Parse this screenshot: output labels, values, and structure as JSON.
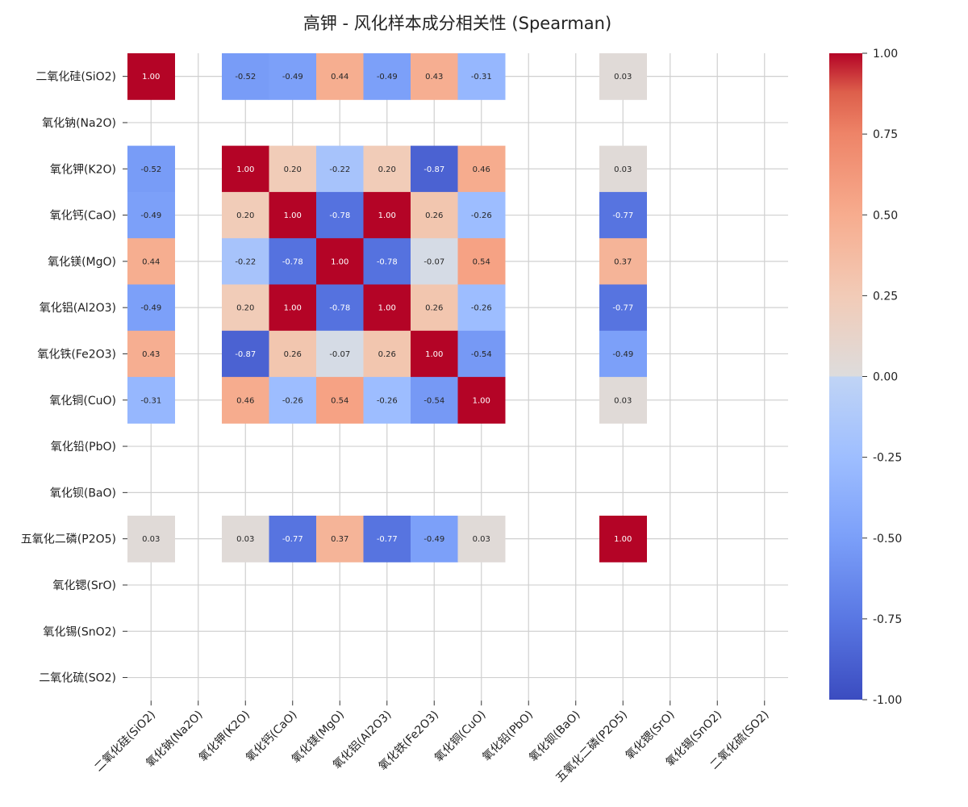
{
  "chart_data": {
    "type": "heatmap",
    "title": "高钾 - 风化样本成分相关性 (Spearman)",
    "row_labels": [
      "二氧化硅(SiO2)",
      "氧化钠(Na2O)",
      "氧化钾(K2O)",
      "氧化钙(CaO)",
      "氧化镁(MgO)",
      "氧化铝(Al2O3)",
      "氧化铁(Fe2O3)",
      "氧化铜(CuO)",
      "氧化铅(PbO)",
      "氧化钡(BaO)",
      "五氧化二磷(P2O5)",
      "氧化锶(SrO)",
      "氧化锡(SnO2)",
      "二氧化硫(SO2)"
    ],
    "col_labels": [
      "二氧化硅(SiO2)",
      "氧化钠(Na2O)",
      "氧化钾(K2O)",
      "氧化钙(CaO)",
      "氧化镁(MgO)",
      "氧化铝(Al2O3)",
      "氧化铁(Fe2O3)",
      "氧化铜(CuO)",
      "氧化铅(PbO)",
      "氧化钡(BaO)",
      "五氧化二磷(P2O5)",
      "氧化锶(SrO)",
      "氧化锡(SnO2)",
      "二氧化硫(SO2)"
    ],
    "values": [
      [
        1.0,
        null,
        -0.52,
        -0.49,
        0.44,
        -0.49,
        0.43,
        -0.31,
        null,
        null,
        0.03,
        null,
        null,
        null
      ],
      [
        null,
        null,
        null,
        null,
        null,
        null,
        null,
        null,
        null,
        null,
        null,
        null,
        null,
        null
      ],
      [
        -0.52,
        null,
        1.0,
        0.2,
        -0.22,
        0.2,
        -0.87,
        0.46,
        null,
        null,
        0.03,
        null,
        null,
        null
      ],
      [
        -0.49,
        null,
        0.2,
        1.0,
        -0.78,
        1.0,
        0.26,
        -0.26,
        null,
        null,
        -0.77,
        null,
        null,
        null
      ],
      [
        0.44,
        null,
        -0.22,
        -0.78,
        1.0,
        -0.78,
        -0.07,
        0.54,
        null,
        null,
        0.37,
        null,
        null,
        null
      ],
      [
        -0.49,
        null,
        0.2,
        1.0,
        -0.78,
        1.0,
        0.26,
        -0.26,
        null,
        null,
        -0.77,
        null,
        null,
        null
      ],
      [
        0.43,
        null,
        -0.87,
        0.26,
        -0.07,
        0.26,
        1.0,
        -0.54,
        null,
        null,
        -0.49,
        null,
        null,
        null
      ],
      [
        -0.31,
        null,
        0.46,
        -0.26,
        0.54,
        -0.26,
        -0.54,
        1.0,
        null,
        null,
        0.03,
        null,
        null,
        null
      ],
      [
        null,
        null,
        null,
        null,
        null,
        null,
        null,
        null,
        null,
        null,
        null,
        null,
        null,
        null
      ],
      [
        null,
        null,
        null,
        null,
        null,
        null,
        null,
        null,
        null,
        null,
        null,
        null,
        null,
        null
      ],
      [
        0.03,
        null,
        0.03,
        -0.77,
        0.37,
        -0.77,
        -0.49,
        0.03,
        null,
        null,
        1.0,
        null,
        null,
        null
      ],
      [
        null,
        null,
        null,
        null,
        null,
        null,
        null,
        null,
        null,
        null,
        null,
        null,
        null,
        null
      ],
      [
        null,
        null,
        null,
        null,
        null,
        null,
        null,
        null,
        null,
        null,
        null,
        null,
        null,
        null
      ],
      [
        null,
        null,
        null,
        null,
        null,
        null,
        null,
        null,
        null,
        null,
        null,
        null,
        null,
        null
      ]
    ],
    "value_range": [
      -1,
      1
    ],
    "colormap": "coolwarm",
    "colorbar_ticks": [
      "1.00",
      "0.75",
      "0.50",
      "0.25",
      "0.00",
      "-0.25",
      "-0.50",
      "-0.75",
      "-1.00"
    ],
    "grid": true
  }
}
